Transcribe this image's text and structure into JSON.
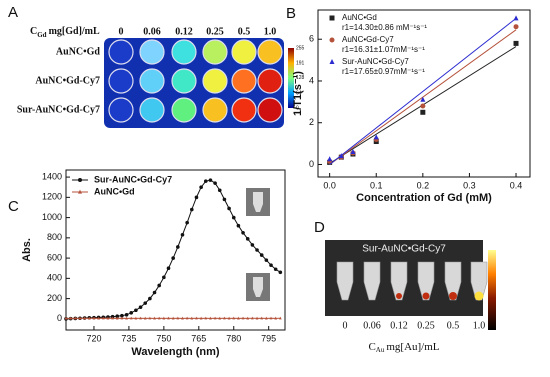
{
  "panel_a": {
    "label": "A",
    "conc_symbol": "C",
    "conc_sub": "Gd",
    "conc_unit": "mg[Gd]/mL",
    "concentrations": [
      "0",
      "0.06",
      "0.12",
      "0.25",
      "0.5",
      "1.0"
    ],
    "rows": [
      "AuNC•Gd",
      "AuNC•Gd-Cy7",
      "Sur-AuNC•Gd-Cy7"
    ],
    "colorbar_ticks": [
      255,
      191,
      128,
      64,
      0
    ]
  },
  "chart_data": [
    {
      "type": "scatter",
      "panel_label": "B",
      "xlabel": "Concentration of Gd (mM)",
      "ylabel": "1/T1(s⁻¹)",
      "x": [
        0,
        0.025,
        0.05,
        0.1,
        0.2,
        0.4
      ],
      "fit_x": [
        0,
        0.4
      ],
      "series": [
        {
          "name": "AuNC•Gd",
          "annotation": "r1=14.30±0.86 mM⁻¹s⁻¹",
          "color": "#222222",
          "marker": "square",
          "values": [
            0.1,
            0.35,
            0.5,
            1.1,
            2.5,
            5.8
          ],
          "fit": [
            0.05,
            5.65
          ]
        },
        {
          "name": "AuNC•Gd-Cy7",
          "annotation": "r1=16.31±1.07mM⁻¹s⁻¹",
          "color": "#b5523b",
          "marker": "circle",
          "values": [
            0.15,
            0.35,
            0.55,
            1.2,
            2.8,
            6.6
          ],
          "fit": [
            0.0,
            6.45
          ]
        },
        {
          "name": "Sur-AuNC•Gd-Cy7",
          "annotation": "r1=17.65±0.97mM⁻¹s⁻¹",
          "color": "#2b2bd0",
          "marker": "triangle",
          "values": [
            0.25,
            0.4,
            0.6,
            1.3,
            3.1,
            7.0
          ],
          "fit": [
            0.0,
            7.0
          ]
        }
      ],
      "xlim": [
        -0.025,
        0.43
      ],
      "ylim": [
        -0.6,
        7.4
      ],
      "xticks": [
        {
          "value": 0,
          "label": "0.0"
        },
        0.1,
        0.2,
        0.3,
        0.4
      ],
      "yticks": [
        0,
        2,
        4,
        6
      ]
    },
    {
      "type": "line",
      "panel_label": "C",
      "xlabel": "Wavelength (nm)",
      "ylabel": "Abs.",
      "x": [
        708,
        710,
        712,
        714,
        716,
        718,
        720,
        722,
        724,
        726,
        728,
        730,
        732,
        734,
        736,
        738,
        740,
        742,
        744,
        746,
        748,
        750,
        752,
        754,
        756,
        758,
        760,
        762,
        764,
        766,
        768,
        770,
        772,
        774,
        776,
        778,
        780,
        782,
        784,
        786,
        788,
        790,
        792,
        794,
        796,
        798,
        800
      ],
      "series": [
        {
          "name": "Sur-AuNC•Gd-Cy7",
          "color": "#111111",
          "marker": "circle",
          "values": [
            0,
            2,
            4,
            6,
            8,
            10,
            12,
            14,
            16,
            18,
            22,
            26,
            32,
            40,
            60,
            85,
            115,
            155,
            200,
            260,
            330,
            410,
            500,
            600,
            710,
            830,
            950,
            1080,
            1200,
            1300,
            1360,
            1370,
            1340,
            1270,
            1180,
            1090,
            1000,
            920,
            850,
            790,
            730,
            680,
            630,
            580,
            530,
            490,
            460
          ]
        },
        {
          "name": "AuNC•Gd",
          "color": "#b5523b",
          "marker": "triangle",
          "values": [
            5,
            5,
            6,
            5,
            6,
            5,
            6,
            5,
            6,
            5,
            6,
            5,
            6,
            5,
            6,
            5,
            6,
            5,
            6,
            5,
            6,
            5,
            6,
            5,
            6,
            5,
            6,
            5,
            6,
            5,
            6,
            5,
            6,
            5,
            6,
            5,
            6,
            5,
            6,
            5,
            6,
            5,
            6,
            5,
            6,
            5,
            6
          ]
        }
      ],
      "xlim": [
        708,
        802
      ],
      "ylim": [
        -110,
        1470
      ],
      "xticks": [
        720,
        735,
        750,
        765,
        780,
        795
      ],
      "yticks": [
        0,
        200,
        400,
        600,
        800,
        1000,
        1200,
        1400
      ]
    }
  ],
  "panel_d": {
    "label": "D",
    "title": "Sur-AuNC•Gd-Cy7",
    "concentrations": [
      "0",
      "0.06",
      "0.12",
      "0.25",
      "0.5",
      "1.0"
    ],
    "conc_symbol": "C",
    "conc_sub": "Au",
    "conc_unit": "mg[Au]/mL"
  }
}
